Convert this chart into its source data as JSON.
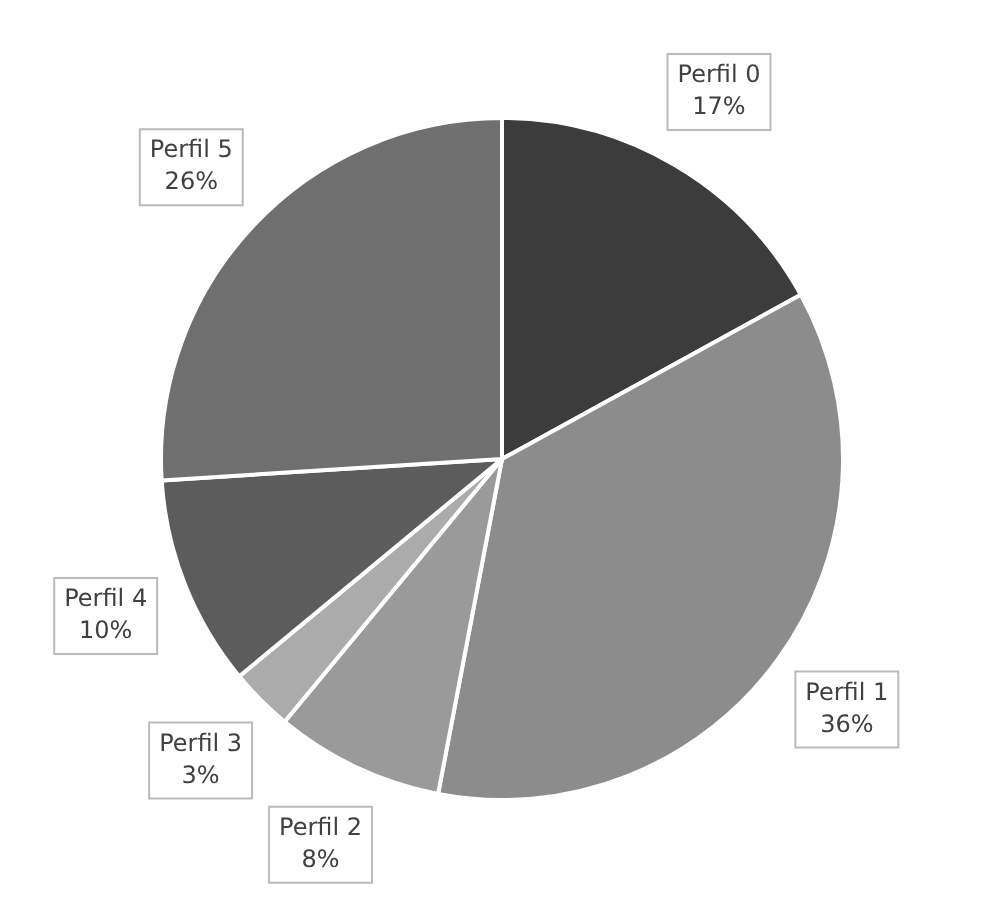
{
  "chart_data": {
    "type": "pie",
    "categories": [
      "Perfil 0",
      "Perfil 1",
      "Perfil 2",
      "Perfil 3",
      "Perfil 4",
      "Perfil 5"
    ],
    "values": [
      17,
      36,
      8,
      3,
      10,
      26
    ],
    "value_labels": [
      "17%",
      "36%",
      "8%",
      "3%",
      "10%",
      "26%"
    ],
    "colors": [
      "#3c3c3c",
      "#8c8c8c",
      "#9a9a9a",
      "#ababab",
      "#5c5c5c",
      "#6f6f6f"
    ],
    "legend": false
  }
}
